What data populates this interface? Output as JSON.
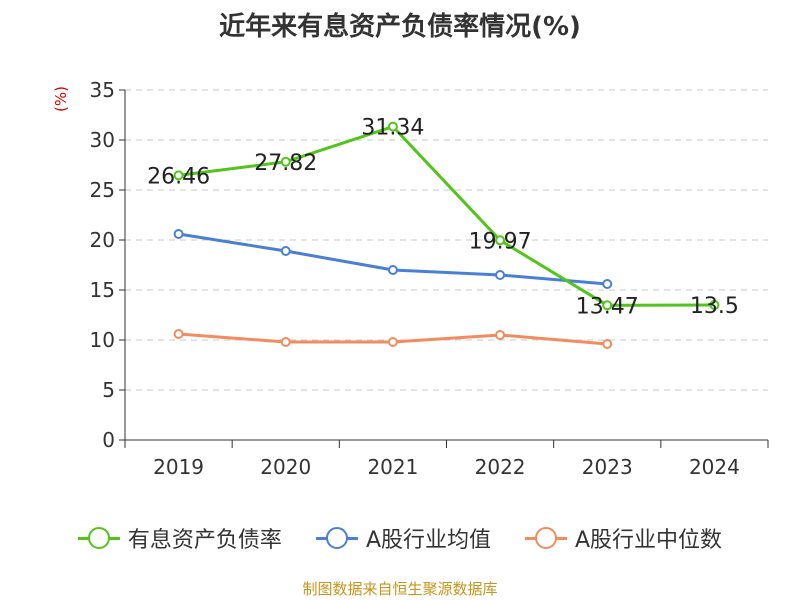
{
  "title": "近年来有息资产负债率情况(%)",
  "source": "制图数据来自恒生聚源数据库",
  "chart_data": {
    "type": "line",
    "title": "近年来有息资产负债率情况(%)",
    "ylabel": "(%)",
    "xlabel": "",
    "categories": [
      "2019",
      "2020",
      "2021",
      "2022",
      "2023",
      "2024"
    ],
    "ylim": [
      0,
      35
    ],
    "yticks": [
      0,
      5,
      10,
      15,
      20,
      25,
      30,
      35
    ],
    "grid": true,
    "legend_position": "bottom",
    "series": [
      {
        "name": "有息资产负债率",
        "color": "#52c41a",
        "show_labels": true,
        "values": [
          26.46,
          27.82,
          31.34,
          19.97,
          13.47,
          13.5
        ]
      },
      {
        "name": "A股行业均值",
        "color": "#4a7fd8",
        "show_labels": false,
        "values": [
          20.6,
          18.9,
          17.0,
          16.5,
          15.6,
          null
        ]
      },
      {
        "name": "A股行业中位数",
        "color": "#f28c5c",
        "show_labels": false,
        "values": [
          10.6,
          9.8,
          9.8,
          10.5,
          9.6,
          null
        ]
      }
    ]
  }
}
